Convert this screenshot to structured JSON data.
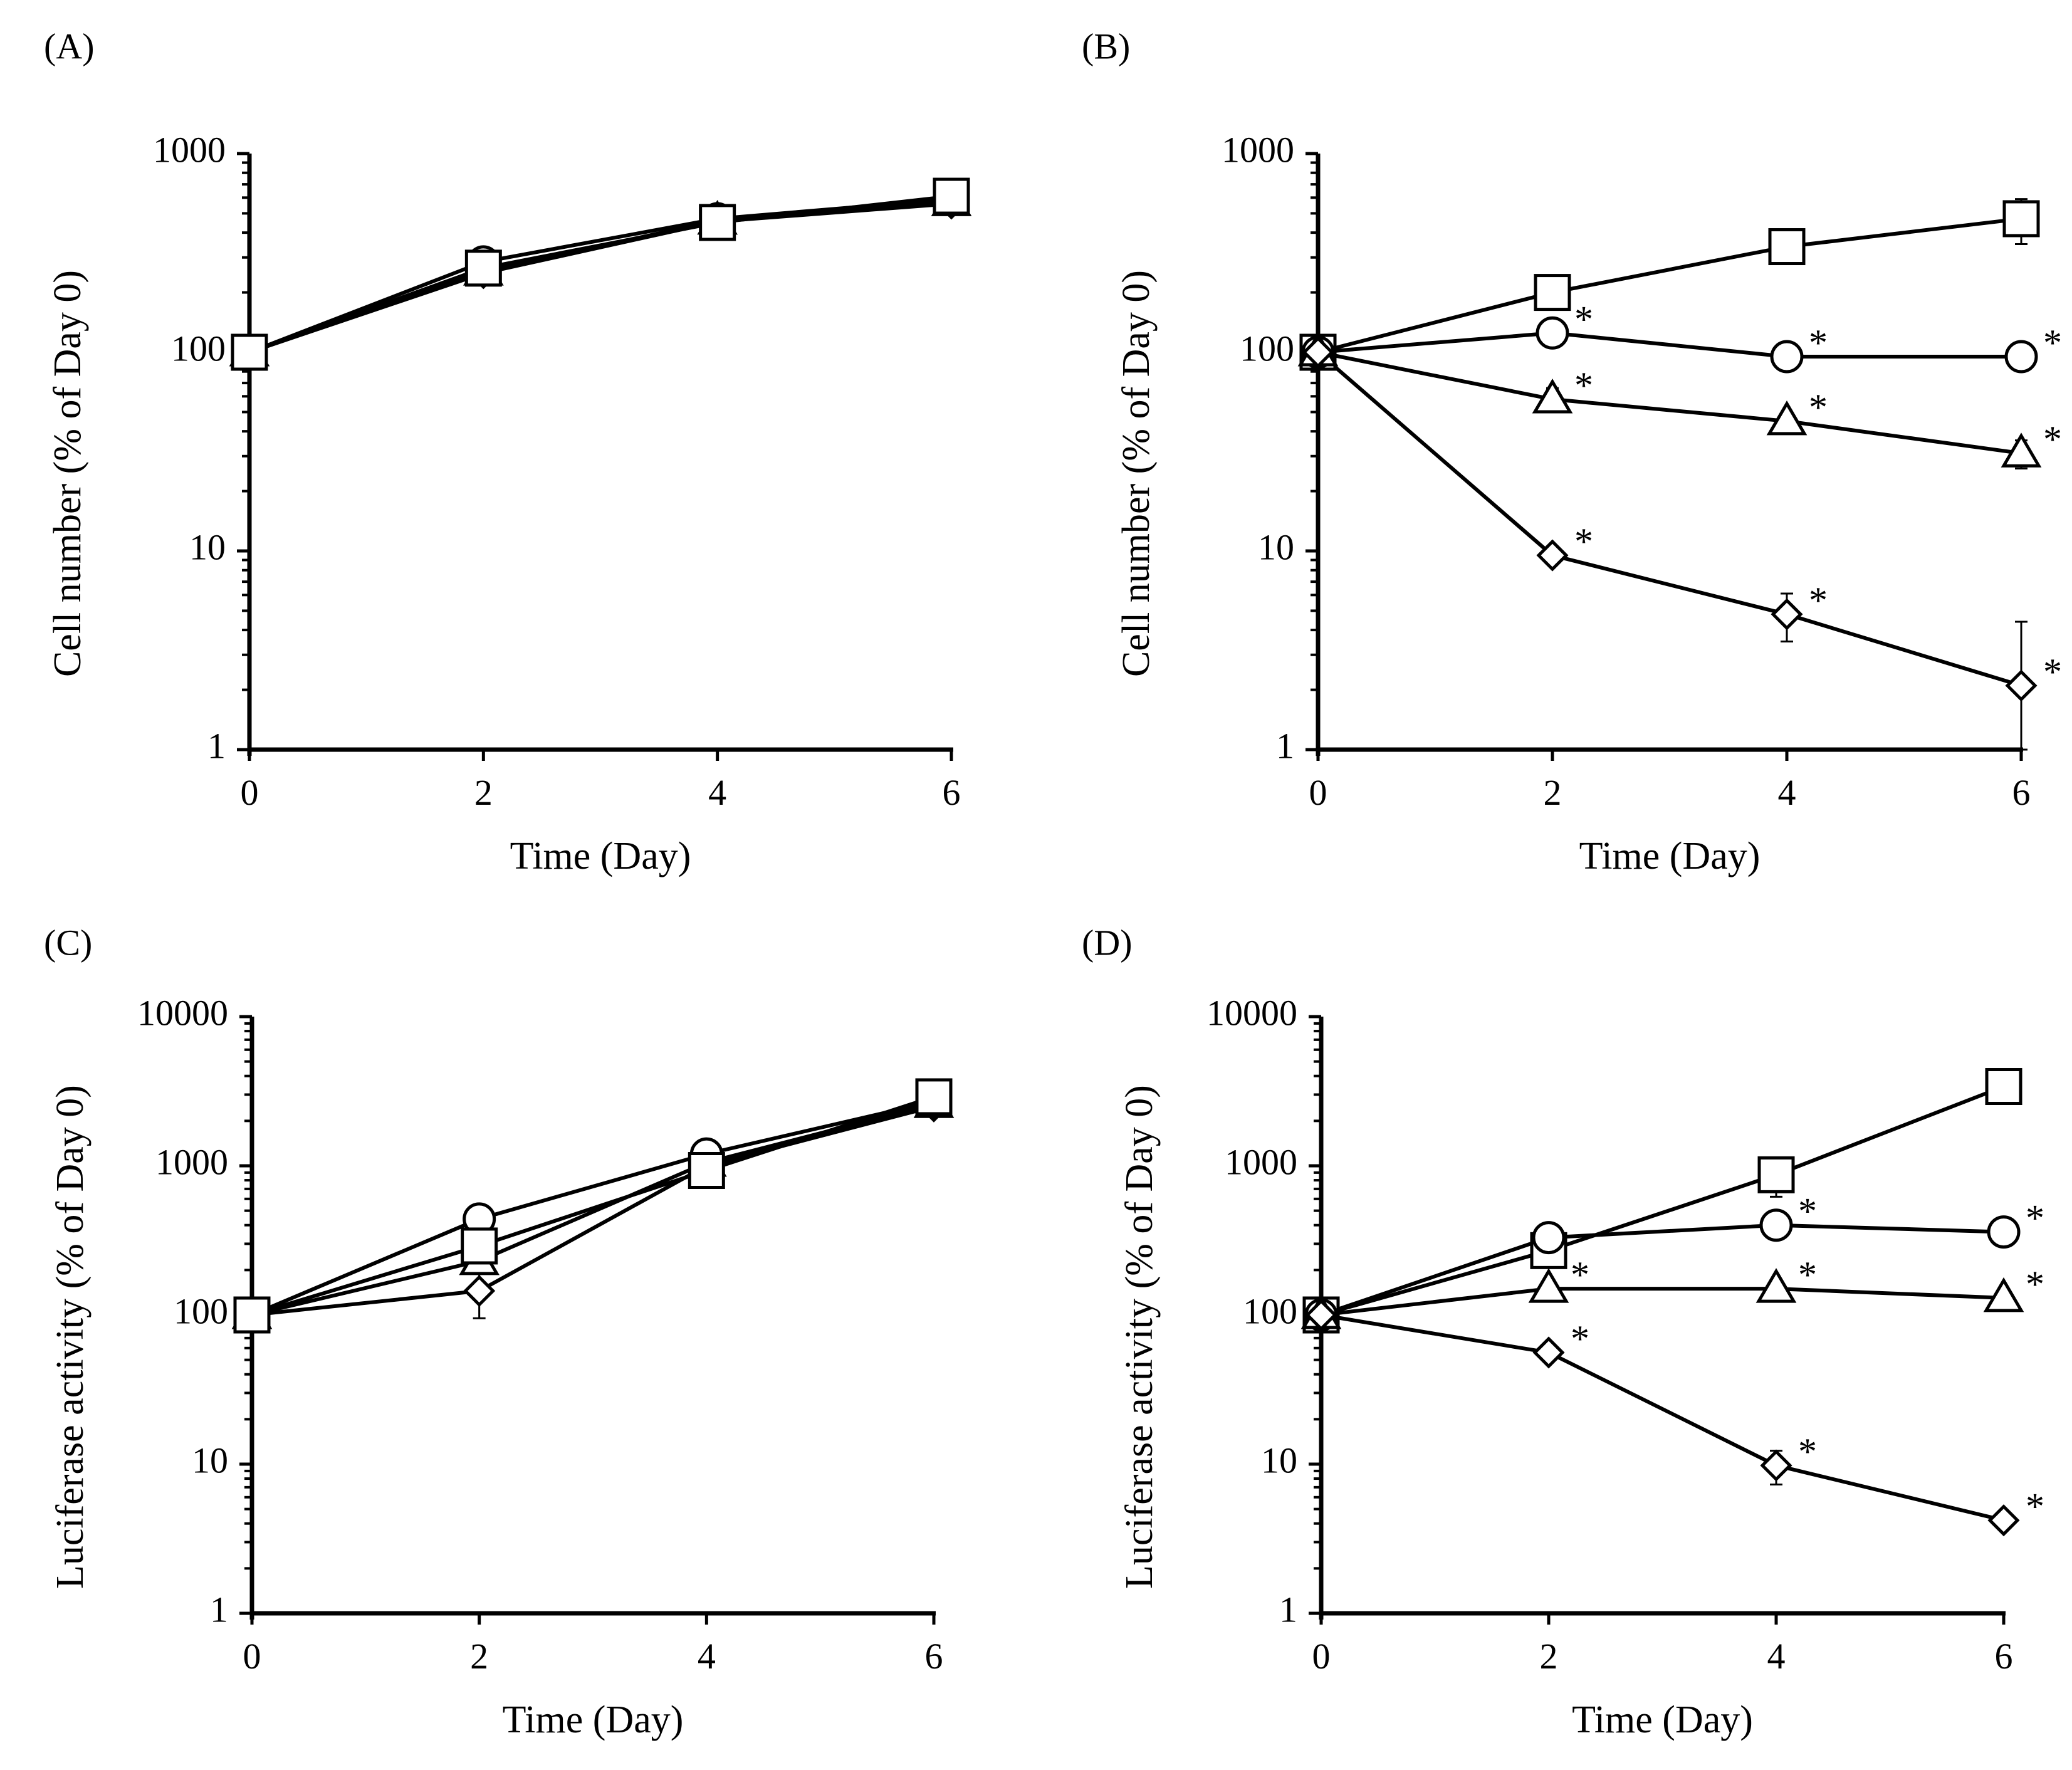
{
  "colors": {
    "line": "#000000",
    "marker_fill": "#ffffff",
    "background": "#ffffff"
  },
  "chart_data": [
    {
      "panel": "(A)",
      "type": "line",
      "xlabel": "Time (Day)",
      "ylabel": "Cell number (% of Day 0)",
      "yscale": "log",
      "ylim": [
        1,
        1000
      ],
      "xlim": [
        0,
        6
      ],
      "x_ticks": [
        "0",
        "2",
        "4",
        "6"
      ],
      "y_ticks": [
        "1",
        "10",
        "100",
        "1000"
      ],
      "grid": false,
      "x": [
        0,
        2,
        4,
        6
      ],
      "series": [
        {
          "name": "diamond",
          "marker": "diamond",
          "values": [
            100,
            250,
            455,
            560
          ],
          "err": [
            0,
            25,
            30,
            40
          ],
          "sig": [
            false,
            false,
            false,
            false
          ]
        },
        {
          "name": "triangle",
          "marker": "triangle",
          "values": [
            100,
            255,
            460,
            570
          ],
          "err": [
            0,
            25,
            30,
            40
          ],
          "sig": [
            false,
            false,
            false,
            false
          ]
        },
        {
          "name": "circle",
          "marker": "circle",
          "values": [
            100,
            285,
            470,
            590
          ],
          "err": [
            0,
            30,
            30,
            40
          ],
          "sig": [
            false,
            false,
            false,
            false
          ]
        },
        {
          "name": "square",
          "marker": "square",
          "values": [
            100,
            265,
            450,
            610
          ],
          "err": [
            0,
            30,
            40,
            50
          ],
          "sig": [
            false,
            false,
            false,
            false
          ]
        }
      ]
    },
    {
      "panel": "(B)",
      "type": "line",
      "xlabel": "Time (Day)",
      "ylabel": "Cell number (% of Day 0)",
      "yscale": "log",
      "ylim": [
        1,
        1000
      ],
      "xlim": [
        0,
        6
      ],
      "x_ticks": [
        "0",
        "2",
        "4",
        "6"
      ],
      "y_ticks": [
        "1",
        "10",
        "100",
        "1000"
      ],
      "grid": false,
      "asterisk_text": "*",
      "x": [
        0,
        2,
        4,
        6
      ],
      "series": [
        {
          "name": "square",
          "marker": "square",
          "values": [
            100,
            200,
            340,
            470
          ],
          "err": [
            0,
            15,
            60,
            120
          ],
          "sig": [
            false,
            false,
            false,
            false
          ]
        },
        {
          "name": "circle",
          "marker": "circle",
          "values": [
            100,
            125,
            95,
            95
          ],
          "err": [
            0,
            8,
            6,
            12
          ],
          "sig": [
            false,
            true,
            true,
            true
          ]
        },
        {
          "name": "triangle",
          "marker": "triangle",
          "values": [
            100,
            58,
            45,
            31
          ],
          "err": [
            0,
            8,
            5,
            5
          ],
          "sig": [
            false,
            true,
            true,
            true
          ]
        },
        {
          "name": "diamond",
          "marker": "diamond",
          "values": [
            100,
            9.5,
            4.8,
            2.1
          ],
          "err": [
            0,
            0.5,
            1.3,
            2.3
          ],
          "sig": [
            false,
            true,
            true,
            true
          ]
        }
      ]
    },
    {
      "panel": "(C)",
      "type": "line",
      "xlabel": "Time (Day)",
      "ylabel": "Luciferase activity (% of Day 0)",
      "yscale": "log",
      "ylim": [
        1,
        10000
      ],
      "xlim": [
        0,
        6
      ],
      "x_ticks": [
        "0",
        "2",
        "4",
        "6"
      ],
      "y_ticks": [
        "1",
        "10",
        "100",
        "1000",
        "10000"
      ],
      "grid": false,
      "x": [
        0,
        2,
        4,
        6
      ],
      "series": [
        {
          "name": "diamond",
          "marker": "diamond",
          "values": [
            100,
            145,
            1000,
            2500
          ],
          "err": [
            0,
            50,
            80,
            300
          ],
          "sig": [
            false,
            false,
            false,
            false
          ]
        },
        {
          "name": "triangle",
          "marker": "triangle",
          "values": [
            100,
            230,
            1050,
            2600
          ],
          "err": [
            0,
            40,
            80,
            300
          ],
          "sig": [
            false,
            false,
            false,
            false
          ]
        },
        {
          "name": "circle",
          "marker": "circle",
          "values": [
            100,
            440,
            1200,
            2700
          ],
          "err": [
            0,
            50,
            100,
            300
          ],
          "sig": [
            false,
            false,
            false,
            false
          ]
        },
        {
          "name": "square",
          "marker": "square",
          "values": [
            100,
            290,
            930,
            2900
          ],
          "err": [
            0,
            40,
            80,
            400
          ],
          "sig": [
            false,
            false,
            false,
            false
          ]
        }
      ]
    },
    {
      "panel": "(D)",
      "type": "line",
      "xlabel": "Time (Day)",
      "ylabel": "Luciferase activity (% of Day 0)",
      "yscale": "log",
      "ylim": [
        1,
        10000
      ],
      "xlim": [
        0,
        6
      ],
      "x_ticks": [
        "0",
        "2",
        "4",
        "6"
      ],
      "y_ticks": [
        "1",
        "10",
        "100",
        "1000",
        "10000"
      ],
      "grid": false,
      "asterisk_text": "*",
      "x": [
        0,
        2,
        4,
        6
      ],
      "series": [
        {
          "name": "square",
          "marker": "square",
          "values": [
            100,
            270,
            870,
            3400
          ],
          "err": [
            0,
            30,
            250,
            200
          ],
          "sig": [
            false,
            false,
            false,
            false
          ]
        },
        {
          "name": "circle",
          "marker": "circle",
          "values": [
            100,
            330,
            400,
            360
          ],
          "err": [
            0,
            30,
            40,
            30
          ],
          "sig": [
            false,
            false,
            true,
            true
          ]
        },
        {
          "name": "triangle",
          "marker": "triangle",
          "values": [
            100,
            150,
            150,
            130
          ],
          "err": [
            0,
            15,
            15,
            12
          ],
          "sig": [
            false,
            true,
            true,
            true
          ]
        },
        {
          "name": "diamond",
          "marker": "diamond",
          "values": [
            100,
            56,
            9.8,
            4.2
          ],
          "err": [
            0,
            5,
            2.5,
            0.4
          ],
          "sig": [
            false,
            true,
            true,
            true
          ]
        }
      ]
    }
  ]
}
